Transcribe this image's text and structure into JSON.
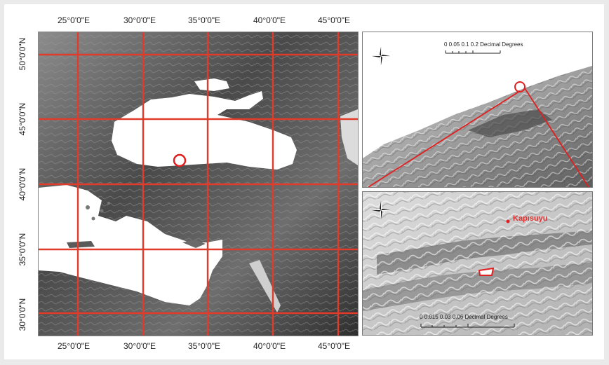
{
  "main_map": {
    "lon_labels": [
      "25°0'0\"E",
      "30°0'0\"E",
      "35°0'0\"E",
      "40°0'0\"E",
      "45°0'0\"E"
    ],
    "lat_labels": [
      "50°0'0\"N",
      "45°0'0\"N",
      "40°0'0\"N",
      "35°0'0\"N",
      "30°0'0\"N"
    ],
    "grid_color": "#e23b2a",
    "marker_color": "#e02020"
  },
  "inset_top": {
    "scale_ticks": "0  0.05 0.1        0.2 Decimal Degrees",
    "north_arrow": "north-arrow-icon"
  },
  "inset_bottom": {
    "town_label": "Kapısuyu",
    "scale_ticks": "0    0.015   0.03              0.06 Decimal Degrees",
    "north_arrow": "north-arrow-icon"
  }
}
